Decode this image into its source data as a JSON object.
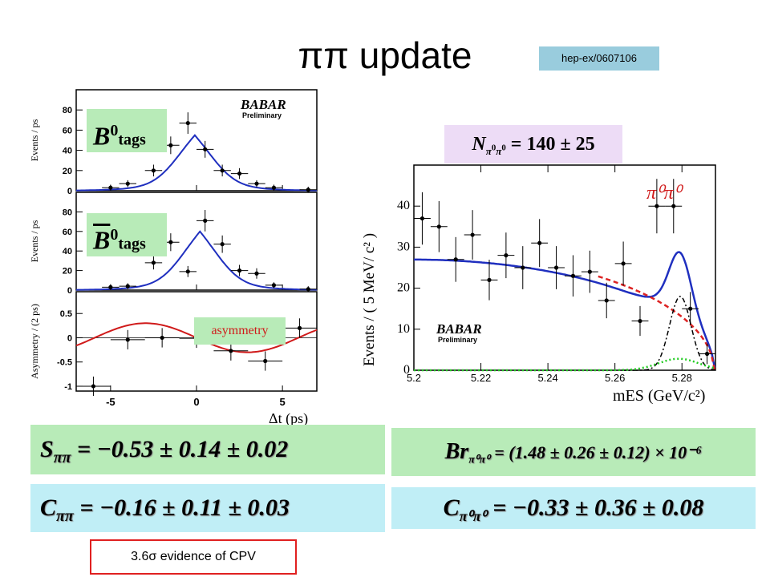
{
  "title": "ππ update",
  "reference": "hep-ex/0607106",
  "evidence_note": "3.6σ evidence of CPV",
  "labels": {
    "b0_tags": "tags",
    "b0bar_tags": "tags",
    "asymmetry": "asymmetry",
    "babar_left": "BABAR",
    "preliminary_left": "Preliminary",
    "babar_right": "BABAR",
    "preliminary_right": "Preliminary",
    "pi0pi0": "π⁰π⁰",
    "yield_main": "N",
    "yield_value": " = 140 ± 25"
  },
  "results": {
    "s_pipi": {
      "symbol": "S",
      "sub": "ππ",
      "text": " = −0.53 ± 0.14 ± 0.02"
    },
    "c_pipi": {
      "symbol": "C",
      "sub": "ππ",
      "text": " = −0.16 ± 0.11 ± 0.03"
    },
    "br_pi0pi0": {
      "symbol": "Br",
      "sub": "π⁰π⁰",
      "text": " = (1.48 ± 0.26 ± 0.12) × 10⁻⁶"
    },
    "c_pi0pi0": {
      "symbol": "C",
      "sub": "π⁰π⁰",
      "text": " = −0.33 ± 0.36 ± 0.08"
    }
  },
  "colors": {
    "fit_blue": "#1f2fbf",
    "asym_red": "#d01a1a",
    "dashed_red": "#dd2222",
    "dotted_green": "#22cc22"
  },
  "chart_data": [
    {
      "type": "scatter",
      "panel": "B0 tags",
      "ylabel": "Events / ps",
      "xlim": [
        -7,
        7
      ],
      "ylim": [
        0,
        100
      ],
      "yticks": [
        0,
        20,
        40,
        60,
        80
      ],
      "points": [
        {
          "x": -5,
          "y": 3
        },
        {
          "x": -4,
          "y": 7
        },
        {
          "x": -2.5,
          "y": 20
        },
        {
          "x": -1.5,
          "y": 45
        },
        {
          "x": -0.5,
          "y": 67
        },
        {
          "x": 0.5,
          "y": 41
        },
        {
          "x": 1.5,
          "y": 20
        },
        {
          "x": 2.5,
          "y": 17
        },
        {
          "x": 3.5,
          "y": 7
        },
        {
          "x": 4.5,
          "y": 3
        },
        {
          "x": 6.5,
          "y": 1
        }
      ],
      "fit": "peak"
    },
    {
      "type": "scatter",
      "panel": "B0bar tags",
      "ylabel": "Events / ps",
      "xlim": [
        -7,
        7
      ],
      "ylim": [
        0,
        100
      ],
      "yticks": [
        0,
        20,
        40,
        60,
        80
      ],
      "points": [
        {
          "x": -5,
          "y": 3
        },
        {
          "x": -4,
          "y": 4
        },
        {
          "x": -2.5,
          "y": 28
        },
        {
          "x": -1.5,
          "y": 49
        },
        {
          "x": -0.5,
          "y": 19
        },
        {
          "x": 0.5,
          "y": 71
        },
        {
          "x": 1.5,
          "y": 47
        },
        {
          "x": 2.5,
          "y": 20
        },
        {
          "x": 3.5,
          "y": 17
        },
        {
          "x": 4.5,
          "y": 5
        },
        {
          "x": 6.5,
          "y": 1
        }
      ],
      "fit": "peak"
    },
    {
      "type": "scatter",
      "panel": "asymmetry",
      "ylabel": "Asymmetry / (2 ps)",
      "xlabel": "Δt (ps)",
      "xlim": [
        -7,
        7
      ],
      "ylim": [
        -1.1,
        0.95
      ],
      "yticks": [
        -1,
        -0.5,
        0,
        0.5
      ],
      "xticks": [
        -5,
        0,
        5
      ],
      "points": [
        {
          "x": -6,
          "y": -1.0
        },
        {
          "x": -4,
          "y": -0.04
        },
        {
          "x": -2,
          "y": 0.0
        },
        {
          "x": 0,
          "y": -0.01
        },
        {
          "x": 2,
          "y": -0.27
        },
        {
          "x": 4,
          "y": -0.48
        },
        {
          "x": 6,
          "y": 0.2
        }
      ],
      "fit": "asymmetry"
    },
    {
      "type": "scatter",
      "panel": "mES",
      "ylabel": "Events / ( 5 MeV/ c² )",
      "xlabel": "mES (GeV/c²)",
      "xlim": [
        5.2,
        5.29
      ],
      "ylim": [
        0,
        50
      ],
      "yticks": [
        0,
        10,
        20,
        30,
        40
      ],
      "xticks": [
        5.2,
        5.22,
        5.24,
        5.26,
        5.28
      ],
      "points": [
        {
          "x": 5.2025,
          "y": 37
        },
        {
          "x": 5.2075,
          "y": 35
        },
        {
          "x": 5.2125,
          "y": 27
        },
        {
          "x": 5.2175,
          "y": 33
        },
        {
          "x": 5.2225,
          "y": 22
        },
        {
          "x": 5.2275,
          "y": 28
        },
        {
          "x": 5.2325,
          "y": 25
        },
        {
          "x": 5.2375,
          "y": 31
        },
        {
          "x": 5.2425,
          "y": 25
        },
        {
          "x": 5.2475,
          "y": 23
        },
        {
          "x": 5.2525,
          "y": 24
        },
        {
          "x": 5.2575,
          "y": 17
        },
        {
          "x": 5.2625,
          "y": 26
        },
        {
          "x": 5.2675,
          "y": 12
        },
        {
          "x": 5.2725,
          "y": 40
        },
        {
          "x": 5.2775,
          "y": 40
        },
        {
          "x": 5.2825,
          "y": 15
        },
        {
          "x": 5.2875,
          "y": 4
        }
      ],
      "fit": "mes"
    }
  ]
}
